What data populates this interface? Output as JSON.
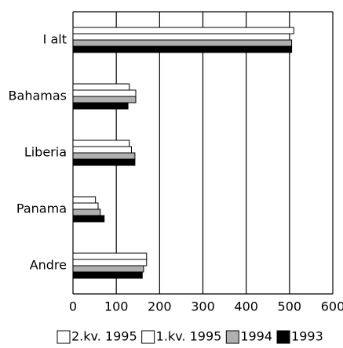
{
  "chart_data": {
    "type": "barh",
    "categories": [
      "I alt",
      "Bahamas",
      "Liberia",
      "Panama",
      "Andre"
    ],
    "series": [
      {
        "name": "2.kv. 1995",
        "color": "#ffffff",
        "values": [
          510,
          130,
          130,
          52,
          170
        ]
      },
      {
        "name": "1.kv. 1995",
        "color": "#ffffff",
        "values": [
          500,
          145,
          135,
          58,
          170
        ]
      },
      {
        "name": "1994",
        "color": "#b0b0b0",
        "values": [
          505,
          145,
          143,
          63,
          163
        ]
      },
      {
        "name": "1993",
        "color": "#000000",
        "values": [
          505,
          127,
          143,
          72,
          160
        ]
      }
    ],
    "xlim": [
      0,
      600
    ],
    "xticks": [
      0,
      100,
      200,
      300,
      400,
      500,
      600
    ],
    "grid": true
  }
}
